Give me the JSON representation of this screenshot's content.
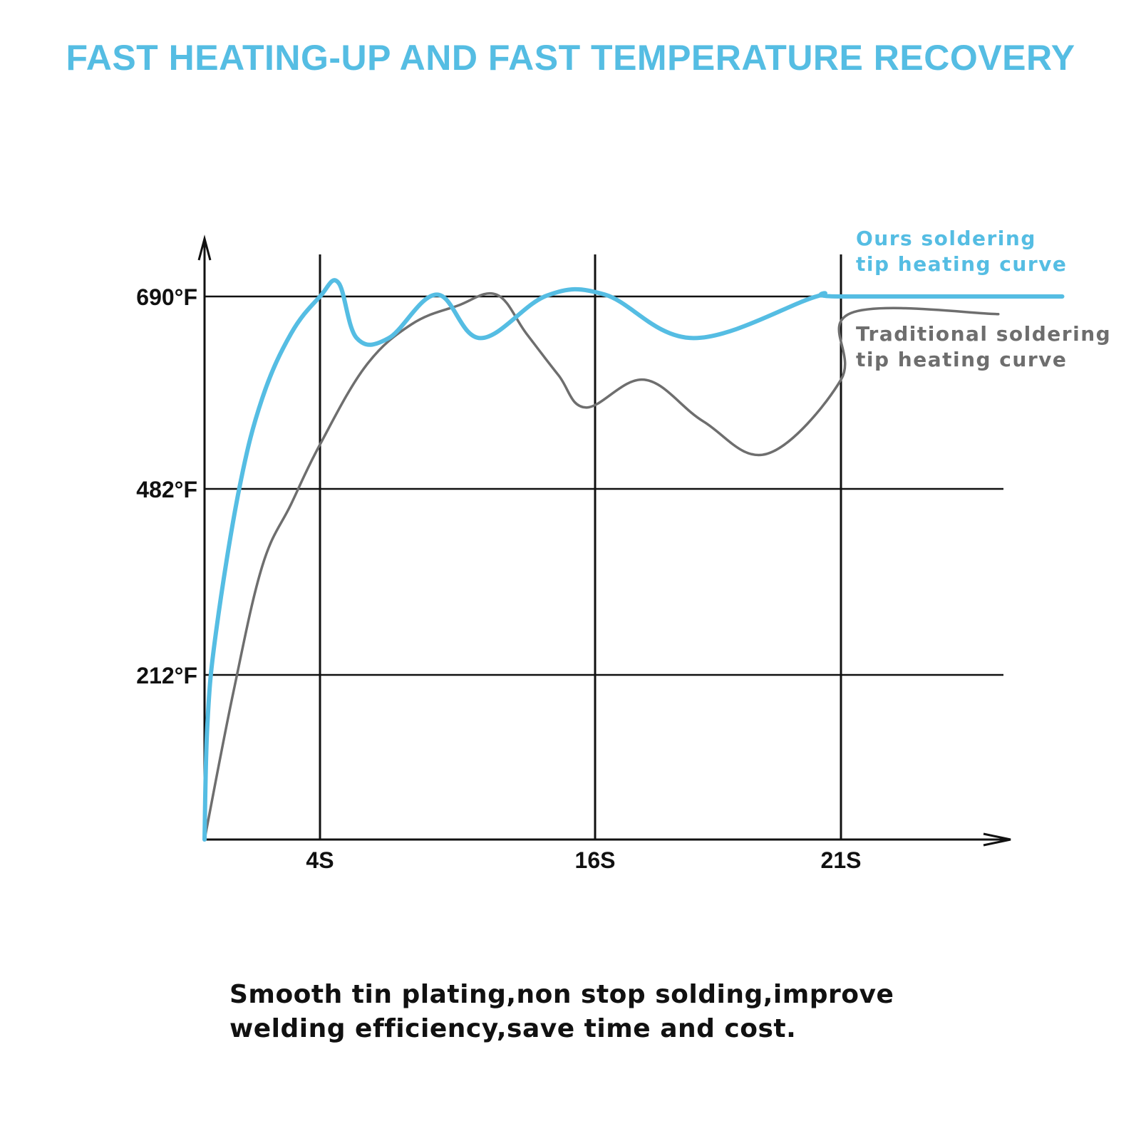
{
  "title": "FAST HEATING-UP AND FAST TEMPERATURE RECOVERY",
  "caption_lines": [
    "Smooth tin plating,non stop solding,improve",
    "welding efficiency,save time and cost."
  ],
  "chart_data": {
    "type": "line",
    "title": "FAST HEATING-UP AND FAST TEMPERATURE RECOVERY",
    "xlabel": "",
    "ylabel": "",
    "x_ticks": [
      {
        "label": "4S",
        "value": 4
      },
      {
        "label": "16S",
        "value": 16
      },
      {
        "label": "21S",
        "value": 21
      }
    ],
    "y_ticks": [
      {
        "label": "212°F",
        "value": 212
      },
      {
        "label": "482°F",
        "value": 482
      },
      {
        "label": "690°F",
        "value": 690
      }
    ],
    "grid": true,
    "legend_position": "top-right",
    "series": [
      {
        "name": "Ours soldering tip heating curve",
        "color": "#55bde3",
        "points": [
          [
            0,
            0
          ],
          [
            0.1,
            150
          ],
          [
            0.4,
            275
          ],
          [
            1.2,
            482
          ],
          [
            2,
            580
          ],
          [
            3,
            650
          ],
          [
            4,
            690
          ],
          [
            4.8,
            705
          ],
          [
            5.6,
            645
          ],
          [
            7,
            645
          ],
          [
            9.1,
            692
          ],
          [
            11,
            645
          ],
          [
            13.9,
            691
          ],
          [
            16.2,
            692
          ],
          [
            18,
            645
          ],
          [
            20.5,
            690
          ],
          [
            21,
            690
          ],
          [
            25.5,
            690
          ]
        ]
      },
      {
        "name": "Traditional soldering tip heating curve",
        "color": "#6e6e6e",
        "points": [
          [
            0,
            0
          ],
          [
            1,
            190
          ],
          [
            2,
            370
          ],
          [
            3,
            460
          ],
          [
            4,
            530
          ],
          [
            6,
            615
          ],
          [
            8,
            660
          ],
          [
            10,
            680
          ],
          [
            11.7,
            692
          ],
          [
            13,
            650
          ],
          [
            14.4,
            605
          ],
          [
            15.6,
            570
          ],
          [
            17,
            600
          ],
          [
            18.2,
            555
          ],
          [
            19.5,
            520
          ],
          [
            21,
            600
          ],
          [
            21.2,
            672
          ],
          [
            24.2,
            671
          ]
        ]
      }
    ]
  }
}
